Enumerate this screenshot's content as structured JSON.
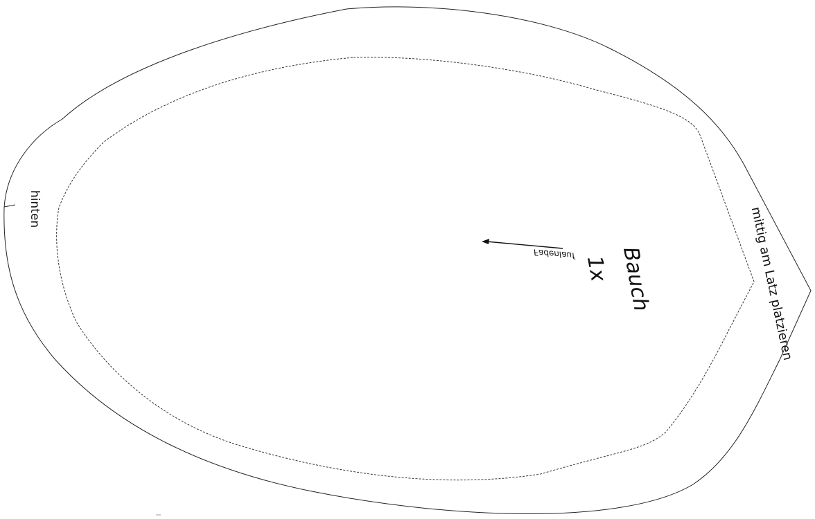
{
  "pattern": {
    "piece_name": "Bauch",
    "count": "1x",
    "grain_label": "Fadenlauf",
    "back_label": "hinten",
    "center_label": "mittig am Latz platzieren"
  }
}
